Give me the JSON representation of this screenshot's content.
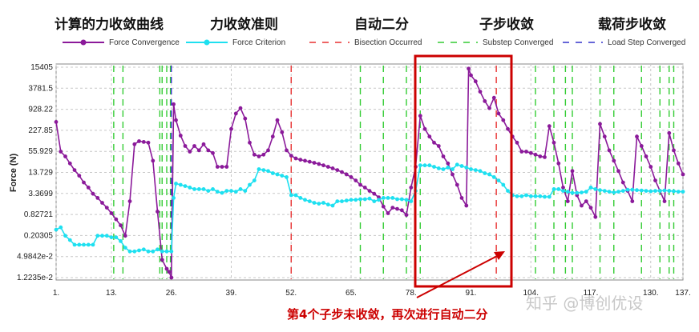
{
  "header_labels": [
    "计算的力收敛曲线",
    "力收敛准则",
    "自动二分",
    "子步收敛",
    "载荷步收敛"
  ],
  "annotation": "第4个子步未收敛，再次进行自动二分",
  "watermark": "知乎 @博创优设",
  "colors": {
    "force_convergence": "#8b1a9a",
    "force_criterion": "#1ee0f0",
    "bisection": "#e83030",
    "substep": "#33cc33",
    "loadstep": "#3333cc",
    "highlight": "#cc0000",
    "grid": "#c8c8c8"
  },
  "chart_data": {
    "type": "line",
    "ylabel": "Force (N)",
    "y_scale": "log",
    "x_ticks": [
      "1.",
      "13.",
      "26.",
      "39.",
      "52.",
      "65.",
      "78.",
      "91.",
      "104.",
      "117.",
      "130.",
      "137."
    ],
    "x_tick_values": [
      1,
      13,
      26,
      39,
      52,
      65,
      78,
      91,
      104,
      117,
      130,
      137
    ],
    "y_ticks": [
      "1.2235e-2",
      "4.9842e-2",
      "0.20305",
      "0.82721",
      "3.3699",
      "13.729",
      "55.929",
      "227.85",
      "928.22",
      "3781.5",
      "15405"
    ],
    "y_tick_values": [
      0.012235,
      0.049842,
      0.20305,
      0.82721,
      3.3699,
      13.729,
      55.929,
      227.85,
      928.22,
      3781.5,
      15405
    ],
    "xlim": [
      1,
      137
    ],
    "ylim": [
      0.012235,
      15405
    ],
    "legend_position": "top",
    "grid": true,
    "series": [
      {
        "name": "Force Convergence",
        "points": [
          [
            1,
            400
          ],
          [
            2,
            55
          ],
          [
            3,
            40
          ],
          [
            4,
            25
          ],
          [
            5,
            16
          ],
          [
            6,
            11
          ],
          [
            7,
            7
          ],
          [
            8,
            5
          ],
          [
            9,
            3.3
          ],
          [
            10,
            2.5
          ],
          [
            11,
            1.8
          ],
          [
            12,
            1.3
          ],
          [
            13,
            0.9
          ],
          [
            14,
            0.6
          ],
          [
            15,
            0.4
          ],
          [
            16,
            0.2
          ],
          [
            17,
            2
          ],
          [
            18,
            90
          ],
          [
            19,
            110
          ],
          [
            20,
            105
          ],
          [
            21,
            100
          ],
          [
            22,
            30
          ],
          [
            23,
            1
          ],
          [
            24,
            0.04
          ],
          [
            25,
            0.022
          ],
          [
            25.5,
            0.018
          ],
          [
            26,
            0.012235
          ],
          [
            26.5,
            1300
          ],
          [
            27,
            450
          ],
          [
            28,
            160
          ],
          [
            29,
            80
          ],
          [
            30,
            55
          ],
          [
            31,
            80
          ],
          [
            32,
            60
          ],
          [
            33,
            90
          ],
          [
            34,
            60
          ],
          [
            35,
            50
          ],
          [
            36,
            20
          ],
          [
            37,
            20
          ],
          [
            38,
            20
          ],
          [
            39,
            250
          ],
          [
            40,
            700
          ],
          [
            41,
            1000
          ],
          [
            42,
            500
          ],
          [
            43,
            100
          ],
          [
            44,
            45
          ],
          [
            45,
            40
          ],
          [
            46,
            45
          ],
          [
            47,
            60
          ],
          [
            48,
            150
          ],
          [
            49,
            450
          ],
          [
            50,
            200
          ],
          [
            51,
            60
          ],
          [
            52,
            42
          ],
          [
            53,
            35
          ],
          [
            54,
            32
          ],
          [
            55,
            30
          ],
          [
            56,
            28
          ],
          [
            57,
            26
          ],
          [
            58,
            24
          ],
          [
            59,
            22
          ],
          [
            60,
            20
          ],
          [
            61,
            18
          ],
          [
            62,
            16
          ],
          [
            63,
            14
          ],
          [
            64,
            12
          ],
          [
            65,
            10
          ],
          [
            66,
            8
          ],
          [
            67,
            6
          ],
          [
            68,
            5
          ],
          [
            69,
            4
          ],
          [
            70,
            3.3
          ],
          [
            71,
            2.6
          ],
          [
            72,
            1.4
          ],
          [
            73,
            0.9
          ],
          [
            74,
            1.3
          ],
          [
            75,
            1.2
          ],
          [
            76,
            1.1
          ],
          [
            77,
            0.8
          ],
          [
            78,
            5
          ],
          [
            79,
            20
          ],
          [
            80,
            600
          ],
          [
            81,
            250
          ],
          [
            82,
            150
          ],
          [
            83,
            100
          ],
          [
            84,
            80
          ],
          [
            85,
            40
          ],
          [
            86,
            25
          ],
          [
            87,
            12
          ],
          [
            88,
            6
          ],
          [
            89,
            2.5
          ],
          [
            90,
            1.5
          ],
          [
            90.5,
            14000
          ],
          [
            91,
            9000
          ],
          [
            92,
            6000
          ],
          [
            93,
            3000
          ],
          [
            94,
            1600
          ],
          [
            95,
            1000
          ],
          [
            96,
            2000
          ],
          [
            97,
            700
          ],
          [
            98,
            450
          ],
          [
            99,
            250
          ],
          [
            100,
            150
          ],
          [
            101,
            100
          ],
          [
            102,
            55
          ],
          [
            103,
            55
          ],
          [
            104,
            50
          ],
          [
            105,
            45
          ],
          [
            106,
            40
          ],
          [
            107,
            38
          ],
          [
            108,
            300
          ],
          [
            109,
            100
          ],
          [
            110,
            25
          ],
          [
            111,
            5
          ],
          [
            112,
            2
          ],
          [
            113,
            15
          ],
          [
            114,
            3
          ],
          [
            115,
            1.5
          ],
          [
            116,
            2
          ],
          [
            117,
            1.3
          ],
          [
            118,
            0.7
          ],
          [
            119,
            350
          ],
          [
            120,
            150
          ],
          [
            121,
            60
          ],
          [
            122,
            30
          ],
          [
            123,
            15
          ],
          [
            124,
            7
          ],
          [
            125,
            4
          ],
          [
            126,
            2
          ],
          [
            127,
            150
          ],
          [
            128,
            80
          ],
          [
            129,
            40
          ],
          [
            130,
            20
          ],
          [
            131,
            8
          ],
          [
            132,
            4
          ],
          [
            133,
            2
          ],
          [
            134,
            190
          ],
          [
            135,
            60
          ],
          [
            136,
            25
          ],
          [
            137,
            12
          ]
        ]
      },
      {
        "name": "Force Criterion",
        "points": [
          [
            1,
            0.3
          ],
          [
            2,
            0.35
          ],
          [
            3,
            0.2
          ],
          [
            4,
            0.15
          ],
          [
            5,
            0.11
          ],
          [
            6,
            0.11
          ],
          [
            7,
            0.11
          ],
          [
            8,
            0.11
          ],
          [
            9,
            0.11
          ],
          [
            10,
            0.2
          ],
          [
            11,
            0.2
          ],
          [
            12,
            0.2
          ],
          [
            13,
            0.18
          ],
          [
            14,
            0.18
          ],
          [
            15,
            0.14
          ],
          [
            16,
            0.09
          ],
          [
            17,
            0.07
          ],
          [
            18,
            0.07
          ],
          [
            19,
            0.075
          ],
          [
            20,
            0.08
          ],
          [
            21,
            0.07
          ],
          [
            22,
            0.07
          ],
          [
            23,
            0.08
          ],
          [
            24,
            0.07
          ],
          [
            25,
            0.07
          ],
          [
            26,
            0.07
          ],
          [
            26.5,
            2.5
          ],
          [
            27,
            6.5
          ],
          [
            28,
            6
          ],
          [
            29,
            5.5
          ],
          [
            30,
            5
          ],
          [
            31,
            4.5
          ],
          [
            32,
            4.5
          ],
          [
            33,
            4.5
          ],
          [
            34,
            4
          ],
          [
            35,
            4.5
          ],
          [
            36,
            3.8
          ],
          [
            37,
            3.5
          ],
          [
            38,
            4
          ],
          [
            39,
            4
          ],
          [
            40,
            3.8
          ],
          [
            41,
            4.5
          ],
          [
            42,
            4
          ],
          [
            43,
            6
          ],
          [
            44,
            8
          ],
          [
            45,
            17
          ],
          [
            46,
            16
          ],
          [
            47,
            15
          ],
          [
            48,
            13
          ],
          [
            49,
            12
          ],
          [
            50,
            11
          ],
          [
            51,
            10
          ],
          [
            52,
            3
          ],
          [
            53,
            3
          ],
          [
            54,
            2.5
          ],
          [
            55,
            2.2
          ],
          [
            56,
            2
          ],
          [
            57,
            1.8
          ],
          [
            58,
            1.7
          ],
          [
            59,
            1.8
          ],
          [
            60,
            1.6
          ],
          [
            61,
            1.5
          ],
          [
            62,
            2
          ],
          [
            63,
            2
          ],
          [
            64,
            2.1
          ],
          [
            65,
            2.2
          ],
          [
            66,
            2.2
          ],
          [
            67,
            2.3
          ],
          [
            68,
            2.3
          ],
          [
            69,
            2.4
          ],
          [
            70,
            2
          ],
          [
            71,
            2.2
          ],
          [
            72,
            2.5
          ],
          [
            73,
            2.5
          ],
          [
            74,
            2.5
          ],
          [
            75,
            2.3
          ],
          [
            76,
            2.3
          ],
          [
            77,
            2.2
          ],
          [
            78,
            2
          ],
          [
            79,
            4
          ],
          [
            80,
            22
          ],
          [
            81,
            22
          ],
          [
            82,
            22
          ],
          [
            83,
            20
          ],
          [
            84,
            18
          ],
          [
            85,
            17
          ],
          [
            86,
            19
          ],
          [
            87,
            17
          ],
          [
            88,
            23
          ],
          [
            89,
            21
          ],
          [
            90,
            19
          ],
          [
            91,
            17
          ],
          [
            92,
            16
          ],
          [
            93,
            15
          ],
          [
            94,
            13
          ],
          [
            95,
            12
          ],
          [
            96,
            10
          ],
          [
            97,
            8
          ],
          [
            98,
            6
          ],
          [
            99,
            4
          ],
          [
            100,
            3
          ],
          [
            101,
            2.8
          ],
          [
            102,
            2.8
          ],
          [
            103,
            3
          ],
          [
            104,
            2.8
          ],
          [
            105,
            2.8
          ],
          [
            106,
            2.8
          ],
          [
            107,
            2.7
          ],
          [
            108,
            2.7
          ],
          [
            109,
            4.5
          ],
          [
            110,
            4.5
          ],
          [
            111,
            4
          ],
          [
            112,
            3.8
          ],
          [
            113,
            3.5
          ],
          [
            114,
            3.5
          ],
          [
            115,
            3.6
          ],
          [
            116,
            3.8
          ],
          [
            117,
            5
          ],
          [
            118,
            4.5
          ],
          [
            119,
            4.2
          ],
          [
            120,
            4
          ],
          [
            121,
            3.8
          ],
          [
            122,
            3.6
          ],
          [
            123,
            3.8
          ],
          [
            124,
            4
          ],
          [
            125,
            4.3
          ],
          [
            126,
            4.3
          ],
          [
            127,
            4.2
          ],
          [
            128,
            4.1
          ],
          [
            129,
            4
          ],
          [
            130,
            3.9
          ],
          [
            131,
            4
          ],
          [
            132,
            4
          ],
          [
            133,
            4.1
          ],
          [
            134,
            4
          ],
          [
            135,
            3.9
          ],
          [
            136,
            3.8
          ],
          [
            137,
            3.8
          ]
        ]
      }
    ],
    "vlines": [
      {
        "name": "Bisection Occurred",
        "x": [
          52,
          96.5
        ]
      },
      {
        "name": "Substep Converged",
        "x": [
          13.5,
          15.5,
          23.5,
          24,
          25,
          25.8,
          67,
          72,
          77,
          80,
          105,
          109,
          111.5,
          113,
          119,
          122,
          128,
          132,
          134,
          135
        ]
      },
      {
        "name": "Load Step Converged",
        "x": [
          26
        ]
      }
    ]
  }
}
